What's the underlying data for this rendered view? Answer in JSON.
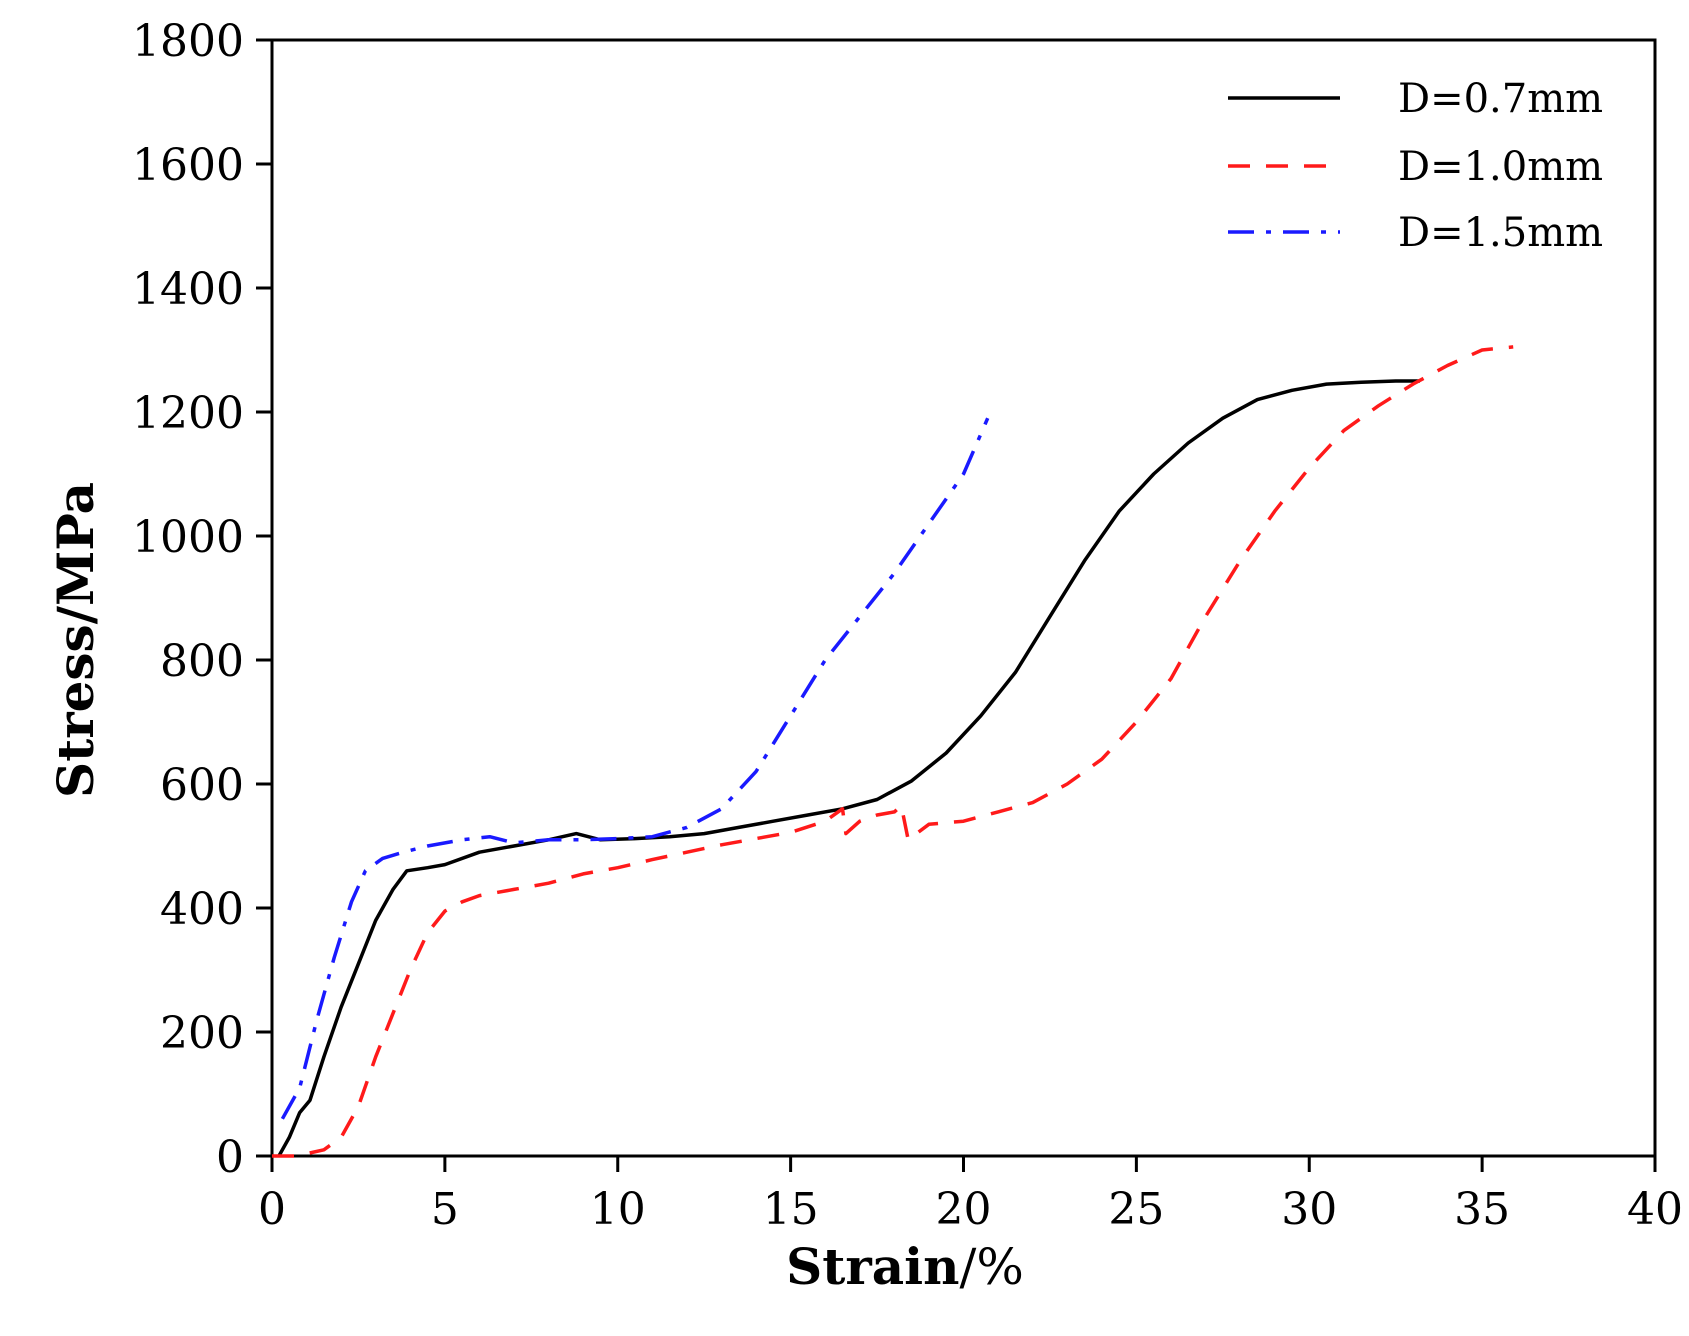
{
  "chart_data": {
    "type": "line",
    "title": "",
    "xlabel_bold": "Strain",
    "xlabel_rest": "/%",
    "ylabel": "Stress/MPa",
    "xlim": [
      0,
      40
    ],
    "ylim": [
      0,
      1800
    ],
    "x_ticks": [
      0,
      5,
      10,
      15,
      20,
      25,
      30,
      35,
      40
    ],
    "y_ticks": [
      0,
      200,
      400,
      600,
      800,
      1000,
      1200,
      1400,
      1600,
      1800
    ],
    "grid": false,
    "legend_position": "top-right",
    "series": [
      {
        "name": "D=0.7mm",
        "color": "#000000",
        "dash": "solid",
        "points": [
          [
            0.2,
            0
          ],
          [
            0.5,
            30
          ],
          [
            0.8,
            70
          ],
          [
            1.1,
            90
          ],
          [
            1.5,
            160
          ],
          [
            2,
            240
          ],
          [
            2.5,
            310
          ],
          [
            3,
            380
          ],
          [
            3.5,
            430
          ],
          [
            3.9,
            460
          ],
          [
            4.5,
            465
          ],
          [
            5,
            470
          ],
          [
            6,
            490
          ],
          [
            7,
            500
          ],
          [
            8,
            510
          ],
          [
            8.8,
            520
          ],
          [
            9.5,
            510
          ],
          [
            10.5,
            512
          ],
          [
            11.5,
            515
          ],
          [
            12.5,
            520
          ],
          [
            13.5,
            530
          ],
          [
            14.5,
            540
          ],
          [
            15.5,
            550
          ],
          [
            16.5,
            560
          ],
          [
            17.5,
            575
          ],
          [
            18.5,
            605
          ],
          [
            19.5,
            650
          ],
          [
            20.5,
            710
          ],
          [
            21.5,
            780
          ],
          [
            22.5,
            870
          ],
          [
            23.5,
            960
          ],
          [
            24.5,
            1040
          ],
          [
            25.5,
            1100
          ],
          [
            26.5,
            1150
          ],
          [
            27.5,
            1190
          ],
          [
            28.5,
            1220
          ],
          [
            29.5,
            1235
          ],
          [
            30.5,
            1245
          ],
          [
            31.5,
            1248
          ],
          [
            32.5,
            1250
          ],
          [
            33.2,
            1250
          ]
        ]
      },
      {
        "name": "D=1.0mm",
        "color": "#ff1a1a",
        "dash": "dashed",
        "points": [
          [
            0,
            0
          ],
          [
            0.7,
            0
          ],
          [
            1.5,
            10
          ],
          [
            2,
            30
          ],
          [
            2.5,
            80
          ],
          [
            3,
            160
          ],
          [
            3.5,
            230
          ],
          [
            4,
            300
          ],
          [
            4.5,
            360
          ],
          [
            5,
            395
          ],
          [
            5.5,
            410
          ],
          [
            6,
            420
          ],
          [
            7,
            430
          ],
          [
            8,
            440
          ],
          [
            9,
            455
          ],
          [
            10,
            465
          ],
          [
            11,
            478
          ],
          [
            12,
            490
          ],
          [
            13,
            502
          ],
          [
            14,
            512
          ],
          [
            15,
            522
          ],
          [
            16,
            540
          ],
          [
            16.5,
            560
          ],
          [
            16.6,
            520
          ],
          [
            17,
            540
          ],
          [
            17.5,
            550
          ],
          [
            18,
            555
          ],
          [
            18.2,
            565
          ],
          [
            18.4,
            510
          ],
          [
            19,
            535
          ],
          [
            20,
            540
          ],
          [
            21,
            555
          ],
          [
            22,
            570
          ],
          [
            23,
            600
          ],
          [
            24,
            640
          ],
          [
            25,
            700
          ],
          [
            26,
            770
          ],
          [
            27,
            870
          ],
          [
            28,
            960
          ],
          [
            29,
            1040
          ],
          [
            30,
            1110
          ],
          [
            31,
            1170
          ],
          [
            32,
            1210
          ],
          [
            33,
            1245
          ],
          [
            34,
            1275
          ],
          [
            35,
            1300
          ],
          [
            35.9,
            1305
          ]
        ]
      },
      {
        "name": "D=1.5mm",
        "color": "#1a1aff",
        "dash": "dashdot",
        "points": [
          [
            0.3,
            60
          ],
          [
            0.8,
            110
          ],
          [
            1.3,
            220
          ],
          [
            1.8,
            320
          ],
          [
            2.3,
            410
          ],
          [
            2.7,
            460
          ],
          [
            3.2,
            480
          ],
          [
            3.8,
            490
          ],
          [
            4.5,
            500
          ],
          [
            5.5,
            510
          ],
          [
            6.3,
            515
          ],
          [
            7,
            505
          ],
          [
            8,
            510
          ],
          [
            9,
            510
          ],
          [
            10,
            512
          ],
          [
            11,
            515
          ],
          [
            12,
            530
          ],
          [
            13,
            560
          ],
          [
            14,
            620
          ],
          [
            15,
            710
          ],
          [
            16,
            800
          ],
          [
            17,
            870
          ],
          [
            18,
            940
          ],
          [
            19,
            1020
          ],
          [
            20,
            1100
          ],
          [
            20.7,
            1190
          ]
        ]
      }
    ]
  }
}
